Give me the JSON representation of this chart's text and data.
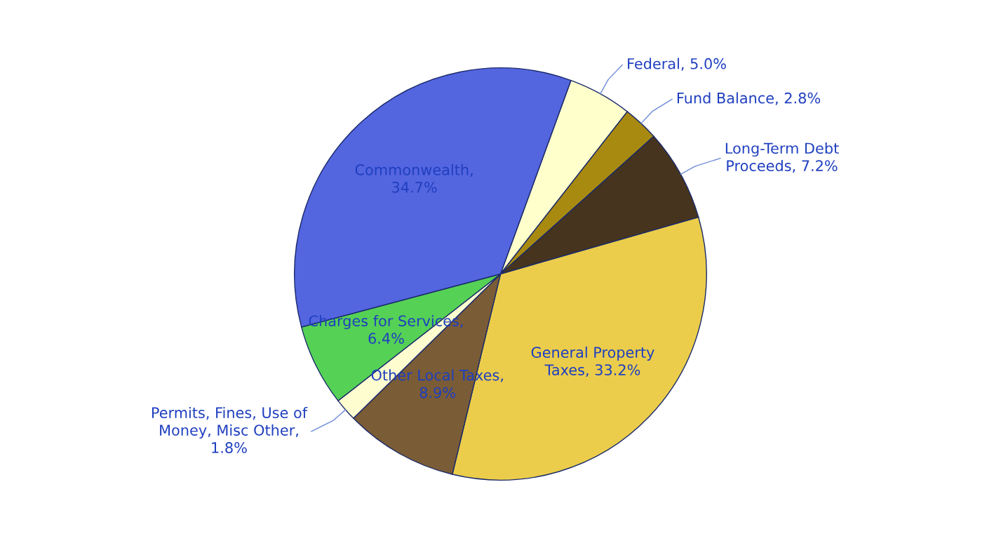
{
  "chart_data": {
    "type": "pie",
    "categories": [
      "Federal, 5.0%",
      "Fund Balance, 2.8%",
      "Long-Term Debt\nProceeds, 7.2%",
      "General Property\nTaxes, 33.2%",
      "Other Local Taxes,\n8.9%",
      "Permits, Fines, Use of\nMoney, Misc Other,\n1.8%",
      "Charges for Services,\n6.4%",
      "Commonwealth,\n34.7%"
    ],
    "values": [
      5.0,
      2.8,
      7.2,
      33.2,
      8.9,
      1.8,
      6.4,
      34.7
    ],
    "colors": [
      "#ffffcc",
      "#a88a10",
      "#46341e",
      "#ebcd4b",
      "#7a5c36",
      "#fdfdd0",
      "#55d155",
      "#5465e0"
    ]
  }
}
